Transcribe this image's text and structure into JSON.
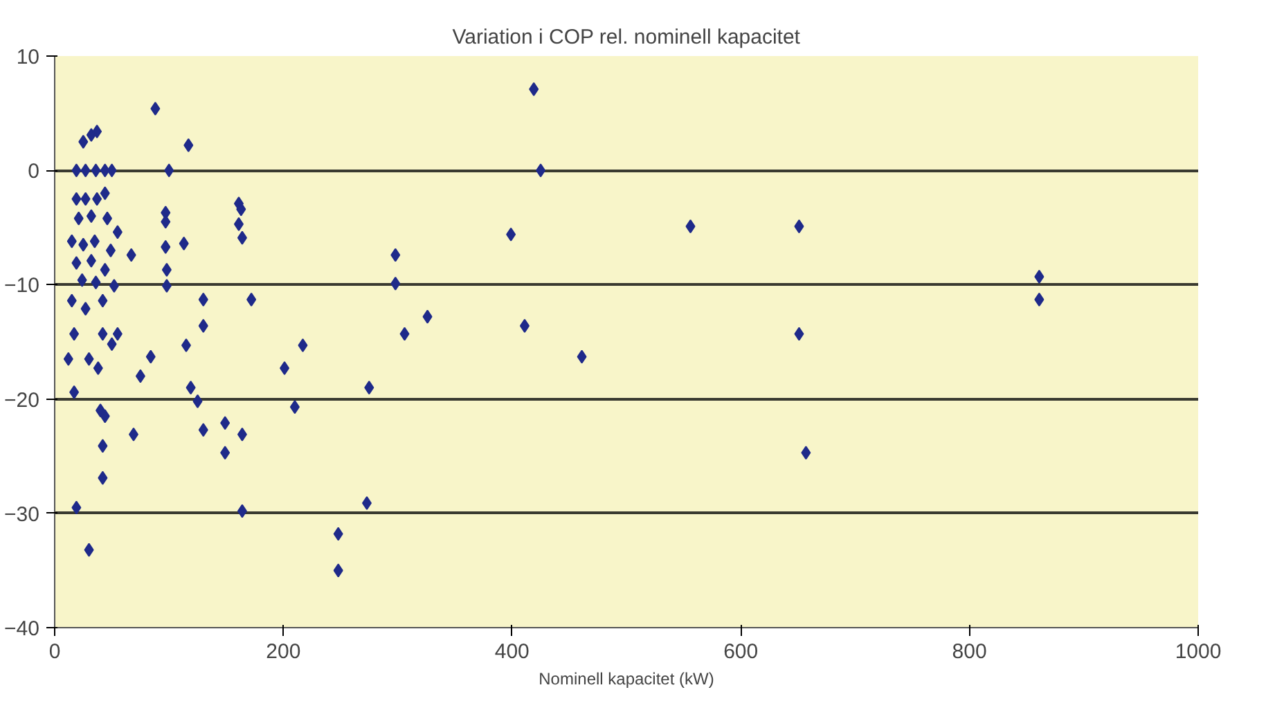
{
  "chart_data": {
    "type": "scatter",
    "title": "Variation i COP rel. nominell kapacitet",
    "xlabel": "Nominell kapacitet (kW)",
    "x": [
      419,
      425,
      399,
      411,
      461,
      556,
      651,
      651,
      657,
      861,
      861,
      161,
      163,
      161,
      164,
      172,
      298,
      298,
      326,
      306,
      217,
      201,
      275,
      210,
      149,
      164,
      149,
      164,
      273,
      248,
      248,
      88,
      117,
      100,
      97,
      97,
      113,
      97,
      98,
      98,
      67,
      55,
      130,
      130,
      115,
      84,
      75,
      119,
      125,
      130,
      69,
      19,
      30,
      32,
      37,
      25,
      19,
      27,
      36,
      44,
      50,
      19,
      27,
      37,
      44,
      21,
      32,
      46,
      15,
      25,
      35,
      49,
      19,
      32,
      44,
      24,
      36,
      52,
      15,
      27,
      42,
      17,
      42,
      55,
      50,
      12,
      30,
      38,
      17,
      40,
      44,
      42,
      42
    ],
    "values": [
      7.1,
      0,
      -5.6,
      -13.6,
      -16.3,
      -4.9,
      -4.9,
      -14.3,
      -24.7,
      -9.3,
      -11.3,
      -2.9,
      -3.4,
      -4.7,
      -5.9,
      -11.3,
      -7.4,
      -9.9,
      -12.8,
      -14.3,
      -15.3,
      -17.3,
      -19.0,
      -20.7,
      -22.1,
      -23.1,
      -24.7,
      -29.8,
      -29.1,
      -31.8,
      -35,
      5.4,
      2.2,
      0,
      -3.7,
      -4.5,
      -6.4,
      -6.7,
      -8.7,
      -10.1,
      -7.4,
      -5.4,
      -11.3,
      -13.6,
      -15.3,
      -16.3,
      -18.0,
      -19.0,
      -20.2,
      -22.7,
      -23.1,
      -29.5,
      -33.2,
      3.1,
      3.4,
      2.5,
      0,
      0,
      0,
      0,
      0,
      -2.5,
      -2.5,
      -2.5,
      -2.0,
      -4.2,
      -4.0,
      -4.2,
      -6.2,
      -6.5,
      -6.2,
      -7.0,
      -8.1,
      -7.9,
      -8.7,
      -9.6,
      -9.8,
      -10.1,
      -11.4,
      -12.1,
      -11.4,
      -14.3,
      -14.3,
      -14.3,
      -15.2,
      -16.5,
      -16.5,
      -17.3,
      -19.4,
      -21.0,
      -21.5,
      -24.1,
      -26.9
    ],
    "color": "#1f2a8a",
    "marker": "diamond",
    "xlim": [
      0,
      1000
    ],
    "xticks": [
      0,
      200,
      400,
      600,
      800,
      1000
    ],
    "ylim": [
      -40,
      10
    ],
    "yticks": [
      -40,
      -30,
      -20,
      -10,
      0,
      10
    ],
    "grid": "y"
  }
}
